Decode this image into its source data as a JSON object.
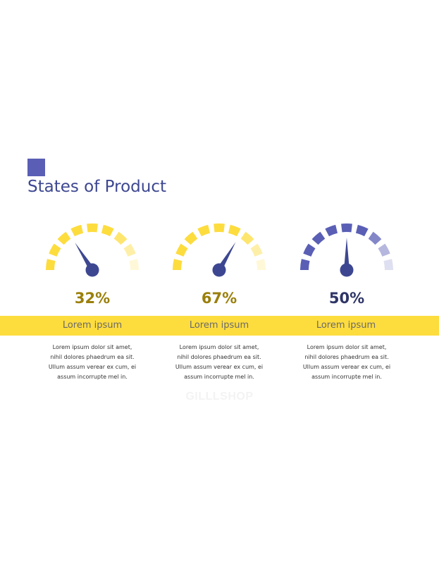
{
  "title": "States of Product",
  "colors": {
    "accent": "#5a5fb5",
    "title": "#3d4791",
    "band": "#fddc3e",
    "needle": "#3d4791",
    "yellow_segment": "#fddc3e",
    "blue_segment": "#5a5fb5",
    "percent_yellow": "#9a7f0a",
    "percent_dark": "#2e3566"
  },
  "gauges": [
    {
      "percent": "32%",
      "value": 32,
      "segment_color": "#fddc3e",
      "percent_color": "#9a7f0a",
      "label": "Lorem ipsum",
      "lines": [
        "Lorem ipsum dolor sit amet,",
        "nihil dolores phaedrum ea sit.",
        "Ullum assum verear ex cum, ei",
        "assum incorrupte mel in."
      ]
    },
    {
      "percent": "67%",
      "value": 67,
      "segment_color": "#fddc3e",
      "percent_color": "#9a7f0a",
      "label": "Lorem ipsum",
      "lines": [
        "Lorem ipsum dolor sit amet,",
        "nihil dolores phaedrum ea sit.",
        "Ullum assum verear ex cum, ei",
        "assum incorrupte mel in."
      ]
    },
    {
      "percent": "50%",
      "value": 50,
      "segment_color": "#5a5fb5",
      "percent_color": "#2e3566",
      "label": "Lorem ipsum",
      "lines": [
        "Lorem ipsum dolor sit amet,",
        "nihil dolores phaedrum ea sit.",
        "Ullum assum verear ex cum, ei",
        "assum incorrupte mel in."
      ]
    }
  ],
  "watermark": "GILLLSHOP"
}
